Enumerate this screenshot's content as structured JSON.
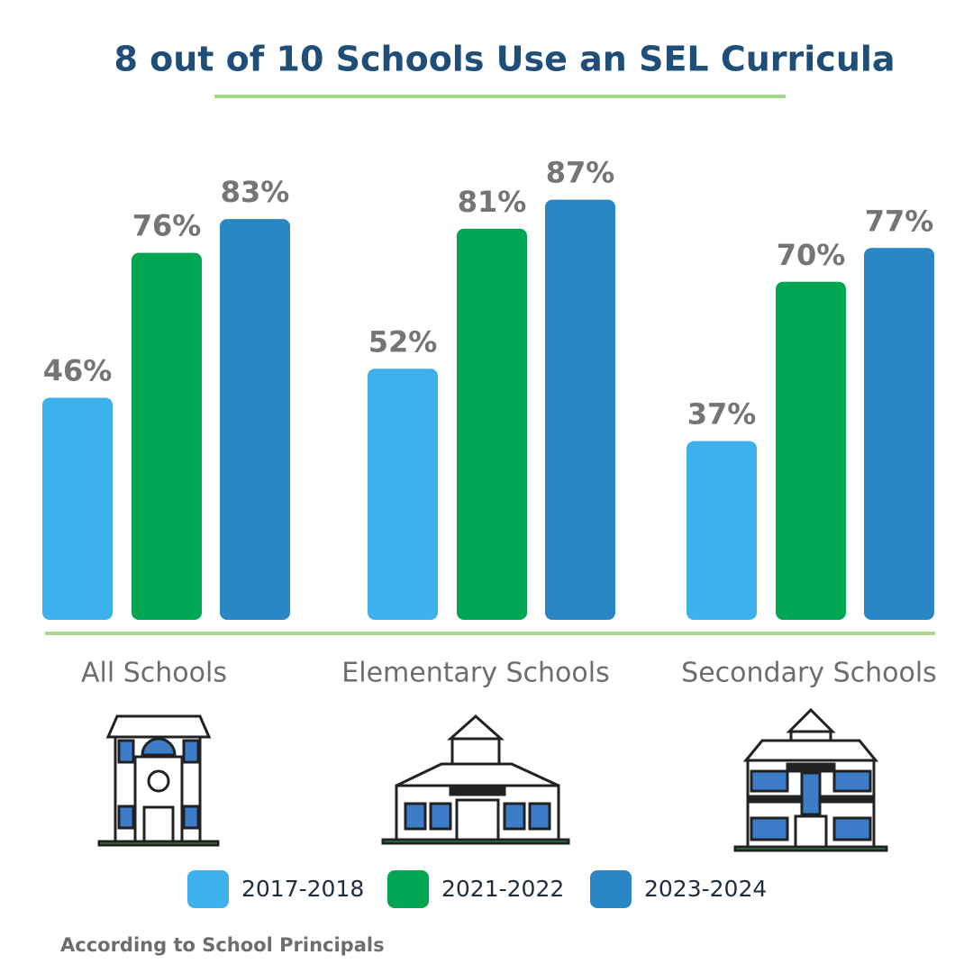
{
  "chart_data": {
    "type": "bar",
    "title": "8 out of 10 Schools Use an SEL Curricula",
    "categories": [
      "All Schools",
      "Elementary Schools",
      "Secondary Schools"
    ],
    "series": [
      {
        "name": "2017-2018",
        "color": "#3db1ec",
        "values": [
          46,
          52,
          37
        ],
        "value_labels": [
          "46%",
          "52%",
          "37%"
        ]
      },
      {
        "name": "2021-2022",
        "color": "#00a651",
        "values": [
          76,
          81,
          70
        ],
        "value_labels": [
          "76%",
          "81%",
          "70%"
        ]
      },
      {
        "name": "2023-2024",
        "color": "#2a87c5",
        "values": [
          83,
          87,
          77
        ],
        "value_labels": [
          "83%",
          "87%",
          "77%"
        ]
      }
    ],
    "note": "According to School Principals"
  }
}
